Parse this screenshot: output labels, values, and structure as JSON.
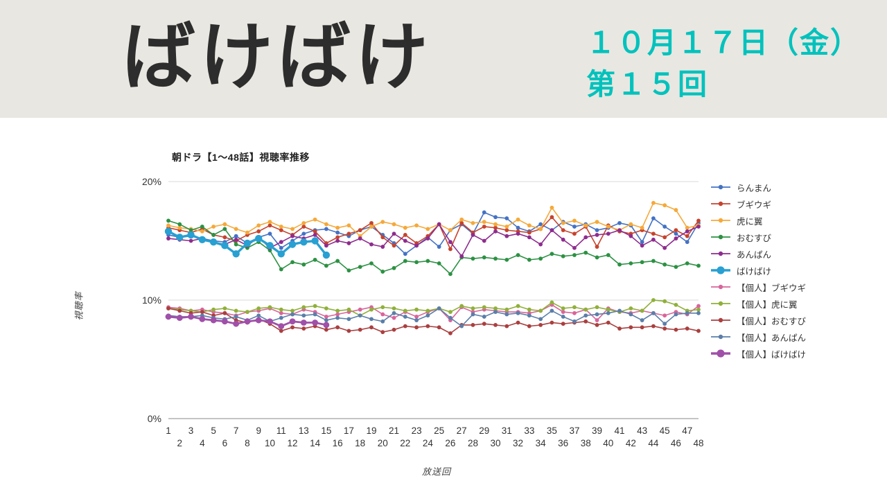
{
  "header": {
    "title": "ばけばけ",
    "date_line": "１０月１７日（金）",
    "episode_line": "第１５回",
    "accent_color": "#00c2bd",
    "background_color": "#e9e7e1"
  },
  "chart_data": {
    "type": "line",
    "title": "朝ドラ【1～48話】視聴率推移",
    "xlabel": "放送回",
    "ylabel": "視聴率",
    "ylim": [
      0,
      20
    ],
    "grid": true,
    "legend_position": "right",
    "y_ticks": [
      {
        "label": "0%",
        "value": 0
      },
      {
        "label": "10%",
        "value": 10
      },
      {
        "label": "20%",
        "value": 20
      }
    ],
    "x": [
      1,
      2,
      3,
      4,
      5,
      6,
      7,
      8,
      9,
      10,
      11,
      12,
      13,
      14,
      15,
      16,
      17,
      18,
      19,
      20,
      21,
      22,
      23,
      24,
      25,
      26,
      27,
      28,
      29,
      30,
      31,
      32,
      33,
      34,
      35,
      36,
      37,
      38,
      39,
      40,
      41,
      42,
      43,
      44,
      45,
      46,
      47,
      48
    ],
    "series": [
      {
        "name": "らんまん",
        "color": "#4472c4",
        "emphasis": false,
        "values": [
          15.5,
          15.3,
          15.4,
          15.2,
          15.0,
          14.9,
          15.4,
          14.8,
          15.3,
          15.6,
          14.4,
          15.0,
          15.6,
          15.9,
          16.0,
          15.7,
          15.4,
          15.9,
          16.2,
          15.5,
          14.8,
          13.9,
          14.6,
          15.3,
          14.5,
          15.9,
          16.4,
          15.6,
          17.4,
          17.0,
          16.9,
          16.1,
          15.8,
          16.4,
          15.9,
          16.6,
          16.2,
          16.4,
          15.9,
          16.1,
          16.5,
          16.3,
          14.9,
          16.9,
          16.2,
          15.6,
          14.9,
          16.5
        ]
      },
      {
        "name": "ブギウギ",
        "color": "#c6432d",
        "emphasis": false,
        "values": [
          16.1,
          15.9,
          15.7,
          16.0,
          15.5,
          15.3,
          15.0,
          15.5,
          15.8,
          16.3,
          15.9,
          15.5,
          16.2,
          15.8,
          14.8,
          15.3,
          15.6,
          15.9,
          16.5,
          15.3,
          14.6,
          15.5,
          14.8,
          15.4,
          16.4,
          14.3,
          16.5,
          15.7,
          16.2,
          16.1,
          15.9,
          15.8,
          15.7,
          16.0,
          17.0,
          15.9,
          15.6,
          16.2,
          14.5,
          16.3,
          15.8,
          15.6,
          15.9,
          15.6,
          15.3,
          15.9,
          15.4,
          16.7
        ]
      },
      {
        "name": "虎に翼",
        "color": "#f5a93a",
        "emphasis": false,
        "values": [
          16.3,
          16.1,
          16.0,
          15.8,
          16.2,
          16.4,
          16.0,
          15.7,
          16.3,
          16.6,
          16.2,
          16.0,
          16.5,
          16.8,
          16.4,
          16.1,
          16.3,
          15.4,
          16.2,
          16.6,
          16.4,
          16.1,
          16.3,
          16.0,
          16.4,
          15.9,
          16.8,
          16.5,
          16.6,
          16.4,
          16.2,
          16.8,
          16.3,
          16.0,
          17.8,
          16.5,
          16.7,
          16.3,
          16.6,
          16.2,
          15.9,
          16.4,
          16.1,
          18.2,
          18.0,
          17.6,
          16.1,
          16.3
        ]
      },
      {
        "name": "おむすび",
        "color": "#2c9143",
        "emphasis": false,
        "values": [
          16.7,
          16.4,
          15.9,
          16.2,
          15.5,
          16.0,
          14.7,
          14.4,
          14.9,
          14.2,
          12.6,
          13.2,
          13.0,
          13.4,
          12.9,
          13.3,
          12.5,
          12.8,
          13.1,
          12.4,
          12.7,
          13.3,
          13.2,
          13.3,
          13.1,
          12.2,
          13.6,
          13.5,
          13.6,
          13.5,
          13.4,
          13.8,
          13.4,
          13.5,
          13.9,
          13.7,
          13.8,
          14.0,
          13.6,
          13.8,
          13.0,
          13.1,
          13.2,
          13.3,
          13.0,
          12.8,
          13.1,
          12.9
        ]
      },
      {
        "name": "あんぱん",
        "color": "#8e2c8e",
        "emphasis": false,
        "values": [
          15.2,
          15.1,
          15.0,
          15.2,
          14.9,
          14.7,
          15.1,
          14.6,
          15.3,
          14.4,
          14.9,
          15.4,
          15.2,
          15.5,
          14.6,
          15.0,
          14.8,
          15.2,
          14.7,
          14.5,
          15.6,
          15.0,
          14.6,
          15.2,
          16.4,
          14.9,
          13.7,
          15.5,
          15.0,
          15.8,
          15.4,
          15.6,
          15.3,
          14.7,
          15.9,
          15.1,
          14.4,
          15.3,
          15.5,
          15.6,
          15.9,
          15.4,
          14.6,
          15.1,
          14.4,
          15.2,
          15.8,
          16.2
        ]
      },
      {
        "name": "ばけばけ",
        "color": "#28a0d2",
        "emphasis": true,
        "values": [
          15.8,
          15.3,
          15.5,
          15.1,
          14.9,
          14.6,
          13.9,
          14.8,
          15.2,
          14.6,
          13.9,
          14.7,
          14.9,
          15.0,
          13.8
        ]
      },
      {
        "name": "【個人】ブギウギ",
        "color": "#d8659a",
        "emphasis": false,
        "values": [
          9.4,
          9.3,
          9.1,
          9.2,
          9.0,
          8.9,
          8.7,
          9.0,
          9.1,
          9.3,
          8.9,
          8.8,
          9.2,
          9.0,
          8.6,
          8.8,
          9.0,
          9.2,
          9.4,
          8.8,
          8.5,
          9.0,
          8.6,
          9.0,
          9.3,
          8.3,
          9.4,
          9.0,
          9.2,
          9.1,
          9.0,
          9.0,
          8.9,
          9.1,
          9.6,
          9.0,
          8.9,
          9.2,
          8.3,
          9.3,
          9.0,
          8.9,
          9.1,
          8.9,
          8.7,
          9.0,
          8.8,
          9.5
        ]
      },
      {
        "name": "【個人】虎に翼",
        "color": "#8fb03a",
        "emphasis": false,
        "values": [
          9.3,
          9.2,
          9.1,
          9.0,
          9.2,
          9.3,
          9.1,
          9.0,
          9.3,
          9.4,
          9.2,
          9.1,
          9.4,
          9.5,
          9.3,
          9.1,
          9.2,
          8.7,
          9.2,
          9.4,
          9.3,
          9.1,
          9.2,
          9.1,
          9.3,
          9.0,
          9.5,
          9.3,
          9.4,
          9.3,
          9.2,
          9.5,
          9.2,
          9.1,
          9.8,
          9.3,
          9.4,
          9.2,
          9.4,
          9.2,
          9.0,
          9.3,
          9.1,
          10.0,
          9.9,
          9.6,
          9.1,
          9.2
        ]
      },
      {
        "name": "【個人】おむすび",
        "color": "#aa3f3f",
        "emphasis": false,
        "values": [
          9.3,
          9.1,
          8.9,
          9.0,
          8.7,
          8.9,
          8.3,
          8.1,
          8.4,
          8.0,
          7.4,
          7.7,
          7.6,
          7.8,
          7.5,
          7.7,
          7.4,
          7.5,
          7.7,
          7.3,
          7.5,
          7.8,
          7.7,
          7.8,
          7.7,
          7.2,
          7.9,
          7.9,
          8.0,
          7.9,
          7.8,
          8.1,
          7.8,
          7.9,
          8.1,
          8.0,
          8.1,
          8.2,
          7.9,
          8.1,
          7.6,
          7.7,
          7.7,
          7.8,
          7.6,
          7.5,
          7.6,
          7.4
        ]
      },
      {
        "name": "【個人】あんぱん",
        "color": "#5b7ea9",
        "emphasis": false,
        "values": [
          8.7,
          8.6,
          8.6,
          8.7,
          8.5,
          8.4,
          8.6,
          8.3,
          8.7,
          8.2,
          8.5,
          8.8,
          8.7,
          8.8,
          8.3,
          8.5,
          8.4,
          8.7,
          8.4,
          8.2,
          8.9,
          8.6,
          8.3,
          8.7,
          9.3,
          8.5,
          7.8,
          8.8,
          8.6,
          9.0,
          8.8,
          8.9,
          8.7,
          8.4,
          9.1,
          8.6,
          8.2,
          8.7,
          8.8,
          8.9,
          9.1,
          8.8,
          8.3,
          8.9,
          8.0,
          8.8,
          8.9,
          8.9
        ]
      },
      {
        "name": "【個人】ばけばけ",
        "color": "#a050a8",
        "emphasis": true,
        "values": [
          8.6,
          8.5,
          8.6,
          8.4,
          8.3,
          8.2,
          8.0,
          8.2,
          8.3,
          8.2,
          7.8,
          8.2,
          8.1,
          8.1,
          7.9
        ]
      }
    ]
  }
}
